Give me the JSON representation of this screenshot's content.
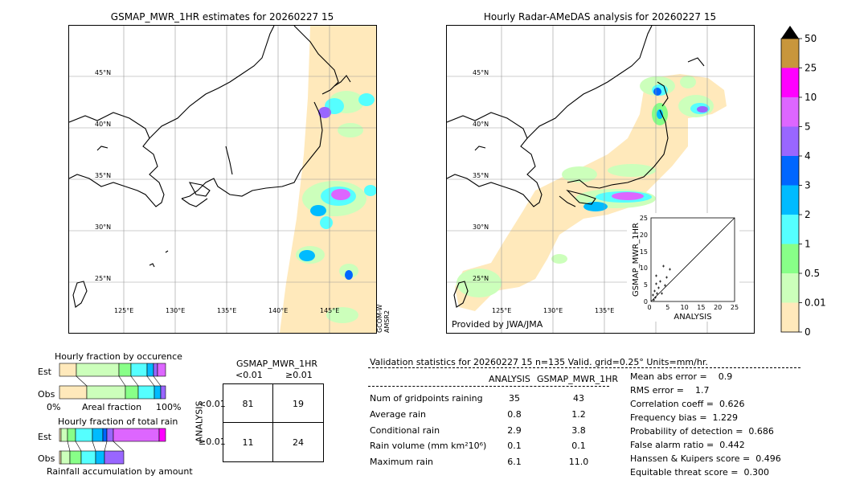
{
  "left_map": {
    "title": "GSMAP_MWR_1HR estimates for 20260227 15",
    "lat_labels": [
      "45°N",
      "40°N",
      "35°N",
      "30°N",
      "25°N"
    ],
    "lon_labels": [
      "125°E",
      "130°E",
      "135°E",
      "140°E",
      "145°E"
    ],
    "side_label_1": "GCOM-W",
    "side_label_2": "AMSR2"
  },
  "right_map": {
    "title": "Hourly Radar-AMeDAS analysis for 20260227 15",
    "lat_labels": [
      "45°N",
      "40°N",
      "35°N",
      "30°N",
      "25°N"
    ],
    "lon_labels": [
      "125°E",
      "130°E",
      "135°E"
    ],
    "credit": "Provided by JWA/JMA"
  },
  "inset_scatter": {
    "xlabel": "ANALYSIS",
    "ylabel": "GSMAP_MWR_1HR",
    "ticks": [
      "0",
      "5",
      "10",
      "15",
      "20",
      "25"
    ]
  },
  "colorbar": {
    "labels": [
      "50",
      "25",
      "10",
      "5",
      "4",
      "3",
      "2",
      "1",
      "0.5",
      "0.01",
      "0"
    ],
    "colors": [
      "#c8963c",
      "#ff00ff",
      "#dd66ff",
      "#9966ff",
      "#0066ff",
      "#00bbff",
      "#55ffff",
      "#88ff88",
      "#ccffbb",
      "#ffe9bb"
    ]
  },
  "fraction_occurrence": {
    "title": "Hourly fraction by occurence",
    "row1": "Est",
    "row2": "Obs",
    "axis_left": "0%",
    "axis_mid": "Areal fraction",
    "axis_right": "100%"
  },
  "fraction_total": {
    "title": "Hourly fraction of total rain",
    "row1": "Est",
    "row2": "Obs",
    "caption": "Rainfall accumulation by amount"
  },
  "contingency": {
    "title": "GSMAP_MWR_1HR",
    "col1": "<0.01",
    "col2": "≥0.01",
    "row_axis": "ANALYSIS",
    "row1": "<0.01",
    "row2": "≥0.01",
    "cells": [
      "81",
      "19",
      "11",
      "24"
    ]
  },
  "validation": {
    "header": "Validation statistics for 20260227 15  n=135 Valid. grid=0.25° Units=mm/hr.",
    "col_analysis": "ANALYSIS",
    "col_gsmap": "GSMAP_MWR_1HR",
    "rows": [
      {
        "label": "Num of gridpoints raining",
        "a": "35",
        "g": "43"
      },
      {
        "label": "Average rain",
        "a": "0.8",
        "g": "1.2"
      },
      {
        "label": "Conditional rain",
        "a": "2.9",
        "g": "3.8"
      },
      {
        "label": "Rain volume (mm km²10⁶)",
        "a": "0.1",
        "g": "0.1"
      },
      {
        "label": "Maximum rain",
        "a": "6.1",
        "g": "11.0"
      }
    ],
    "scores": [
      "Mean abs error =    0.9",
      "RMS error =    1.7",
      "Correlation coeff =  0.626",
      "Frequency bias =  1.229",
      "Probability of detection =  0.686",
      "False alarm ratio =  0.442",
      "Hanssen & Kuipers score =  0.496",
      "Equitable threat score =  0.300"
    ]
  }
}
